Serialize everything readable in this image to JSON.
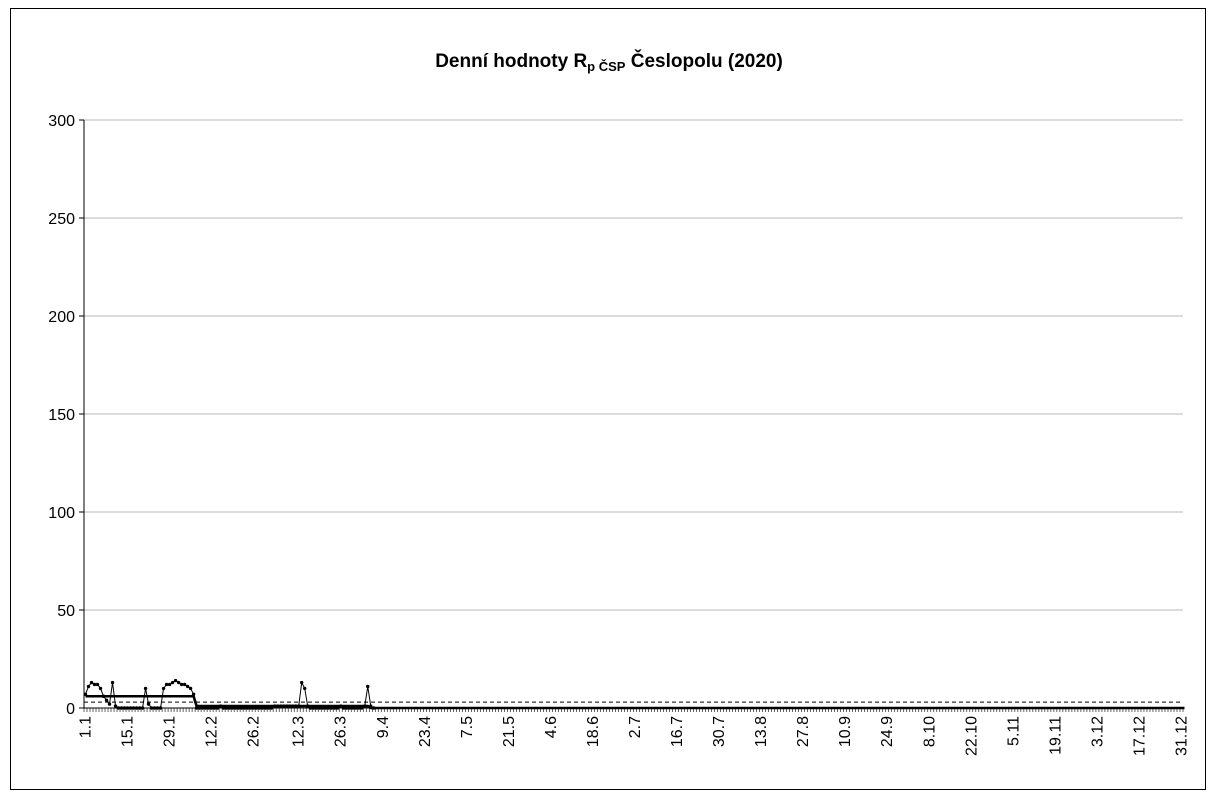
{
  "chart_data": {
    "type": "line",
    "title": {
      "main": "Denní hodnoty R",
      "sub": "p ČSP",
      "rest": "Česlopolu (2020)"
    },
    "xlabel": "",
    "ylabel": "",
    "ylim": [
      0,
      300
    ],
    "yticks": [
      0,
      50,
      100,
      150,
      200,
      250,
      300
    ],
    "grid": true,
    "legend": "none",
    "x_tick_labels": [
      "1.1",
      "15.1",
      "29.1",
      "12.2",
      "26.2",
      "12.3",
      "26.3",
      "9.4",
      "23.4",
      "7.5",
      "21.5",
      "4.6",
      "18.6",
      "2.7",
      "16.7",
      "30.7",
      "13.8",
      "27.8",
      "10.9",
      "24.9",
      "8.10",
      "22.10",
      "5.11",
      "19.11",
      "3.12",
      "17.12",
      "31.12"
    ],
    "x_tick_day_index": [
      0,
      14,
      28,
      42,
      56,
      71,
      85,
      99,
      113,
      127,
      141,
      155,
      169,
      183,
      197,
      211,
      225,
      239,
      253,
      267,
      281,
      295,
      309,
      323,
      337,
      351,
      365
    ],
    "days_in_year": 366,
    "series": [
      {
        "style": "thin-line-markers",
        "color": "#000000",
        "points": [
          [
            0,
            7
          ],
          [
            1,
            11
          ],
          [
            2,
            13
          ],
          [
            3,
            12
          ],
          [
            4,
            12
          ],
          [
            5,
            10
          ],
          [
            6,
            6
          ],
          [
            7,
            4
          ],
          [
            8,
            2
          ],
          [
            9,
            13
          ],
          [
            10,
            1
          ],
          [
            11,
            0
          ],
          [
            12,
            0
          ],
          [
            13,
            0
          ],
          [
            14,
            0
          ],
          [
            15,
            0
          ],
          [
            16,
            0
          ],
          [
            17,
            0
          ],
          [
            18,
            0
          ],
          [
            19,
            0
          ],
          [
            20,
            10
          ],
          [
            21,
            2
          ],
          [
            22,
            0
          ],
          [
            23,
            0
          ],
          [
            24,
            0
          ],
          [
            25,
            0
          ],
          [
            26,
            10
          ],
          [
            27,
            12
          ],
          [
            28,
            12
          ],
          [
            29,
            13
          ],
          [
            30,
            14
          ],
          [
            31,
            13
          ],
          [
            32,
            12
          ],
          [
            33,
            12
          ],
          [
            34,
            11
          ],
          [
            35,
            10
          ],
          [
            36,
            7
          ],
          [
            37,
            0
          ],
          [
            38,
            0
          ],
          [
            39,
            0
          ],
          [
            40,
            0
          ],
          [
            41,
            0
          ],
          [
            42,
            0
          ],
          [
            43,
            0
          ],
          [
            44,
            0
          ],
          [
            45,
            1
          ],
          [
            46,
            0
          ],
          [
            47,
            0
          ],
          [
            48,
            0
          ],
          [
            49,
            0
          ],
          [
            50,
            0
          ],
          [
            51,
            0
          ],
          [
            52,
            0
          ],
          [
            53,
            0
          ],
          [
            54,
            0
          ],
          [
            55,
            0
          ],
          [
            56,
            0
          ],
          [
            57,
            0
          ],
          [
            58,
            0
          ],
          [
            59,
            0
          ],
          [
            60,
            0
          ],
          [
            61,
            0
          ],
          [
            62,
            0
          ],
          [
            63,
            1
          ],
          [
            64,
            1
          ],
          [
            65,
            1
          ],
          [
            66,
            1
          ],
          [
            67,
            1
          ],
          [
            68,
            1
          ],
          [
            69,
            1
          ],
          [
            70,
            1
          ],
          [
            71,
            1
          ],
          [
            72,
            13
          ],
          [
            73,
            10
          ],
          [
            74,
            1
          ],
          [
            75,
            0
          ],
          [
            76,
            0
          ],
          [
            77,
            0
          ],
          [
            78,
            0
          ],
          [
            79,
            0
          ],
          [
            80,
            0
          ],
          [
            81,
            0
          ],
          [
            82,
            0
          ],
          [
            83,
            0
          ],
          [
            84,
            0
          ],
          [
            85,
            1
          ],
          [
            86,
            0
          ],
          [
            87,
            0
          ],
          [
            88,
            0
          ],
          [
            89,
            0
          ],
          [
            90,
            0
          ],
          [
            91,
            0
          ],
          [
            92,
            0
          ],
          [
            93,
            1
          ],
          [
            94,
            11
          ],
          [
            95,
            1
          ],
          [
            96,
            0
          ]
        ]
      },
      {
        "style": "thick-step",
        "color": "#000000",
        "points": [
          [
            0,
            6
          ],
          [
            36,
            6
          ],
          [
            37,
            1
          ],
          [
            94,
            1
          ],
          [
            95,
            0
          ],
          [
            366,
            0
          ]
        ]
      },
      {
        "style": "dashed-reference",
        "color": "#000000",
        "value": 3
      }
    ]
  }
}
